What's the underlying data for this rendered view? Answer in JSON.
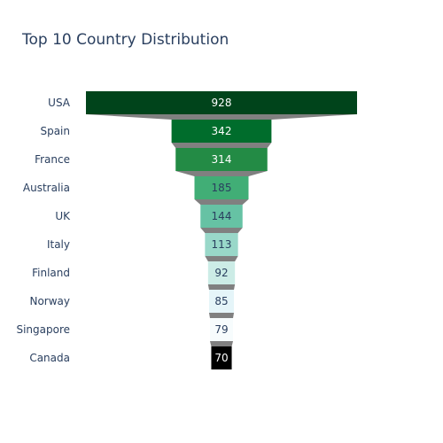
{
  "chart_data": {
    "type": "funnel",
    "title": "Top 10 Country Distribution",
    "categories": [
      "USA",
      "Spain",
      "France",
      "Australia",
      "UK",
      "Italy",
      "Finland",
      "Norway",
      "Singapore",
      "Canada"
    ],
    "values": [
      928,
      342,
      314,
      185,
      144,
      113,
      92,
      85,
      79,
      70
    ],
    "colors": [
      "#00441b",
      "#006d2c",
      "#238b45",
      "#41ae76",
      "#66c2a4",
      "#99d8c9",
      "#ccece6",
      "#e5f5f9",
      "#f7fcfd",
      "#000000"
    ],
    "text_colors": [
      "#ffffff",
      "#ffffff",
      "#ffffff",
      "#2a3f5f",
      "#2a3f5f",
      "#2a3f5f",
      "#2a3f5f",
      "#2a3f5f",
      "#2a3f5f",
      "#ffffff"
    ],
    "connector_color": "#808080"
  }
}
